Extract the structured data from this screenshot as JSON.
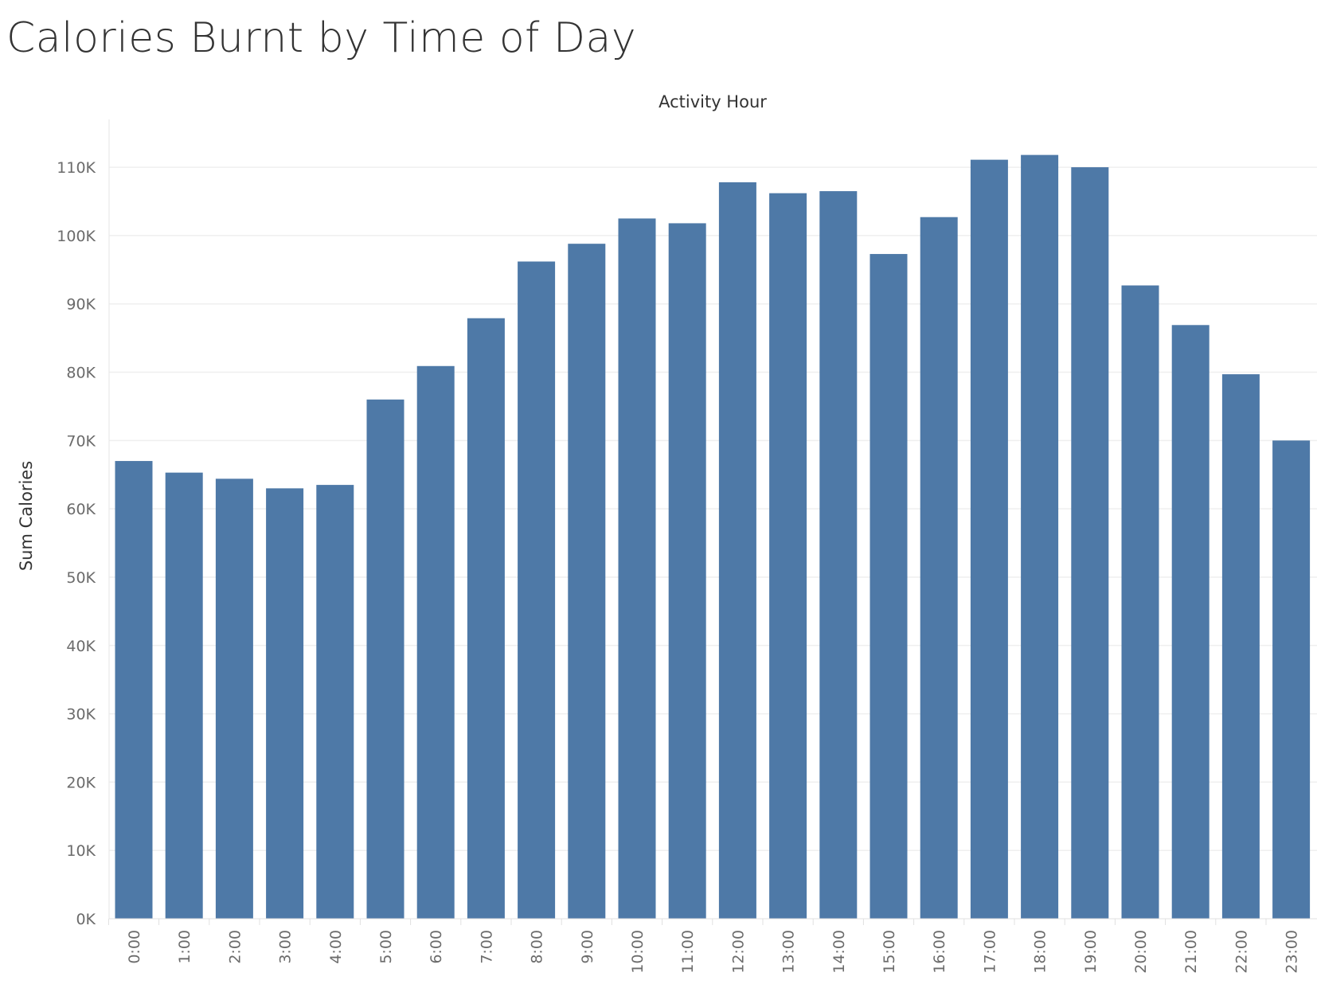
{
  "title": "Calories Burnt by Time of Day",
  "chart_data": {
    "type": "bar",
    "title": "Calories Burnt by Time of Day",
    "xlabel": "Activity Hour",
    "ylabel": "Sum Calories",
    "categories": [
      "0:00",
      "1:00",
      "2:00",
      "3:00",
      "4:00",
      "5:00",
      "6:00",
      "7:00",
      "8:00",
      "9:00",
      "10:00",
      "11:00",
      "12:00",
      "13:00",
      "14:00",
      "15:00",
      "16:00",
      "17:00",
      "18:00",
      "19:00",
      "20:00",
      "21:00",
      "22:00",
      "23:00"
    ],
    "values": [
      67000,
      65300,
      64400,
      63000,
      63500,
      76000,
      80900,
      87900,
      96200,
      98800,
      102500,
      101800,
      107800,
      106200,
      106500,
      97300,
      102700,
      111100,
      111800,
      110000,
      92700,
      86900,
      79700,
      70000
    ],
    "ylim": [
      0,
      117000
    ],
    "yticks": [
      0,
      10000,
      20000,
      30000,
      40000,
      50000,
      60000,
      70000,
      80000,
      90000,
      100000,
      110000
    ],
    "ytick_labels": [
      "0K",
      "10K",
      "20K",
      "30K",
      "40K",
      "50K",
      "60K",
      "70K",
      "80K",
      "90K",
      "100K",
      "110K"
    ],
    "grid": true,
    "bar_color": "#4e79a7"
  }
}
